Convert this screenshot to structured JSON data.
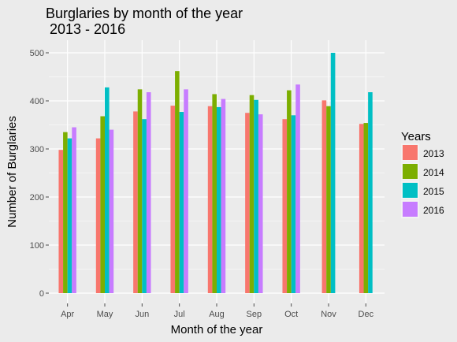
{
  "chart_data": {
    "type": "bar",
    "title_line1": "Burglaries by month of the year",
    "title_line2": " 2013 - 2016",
    "xlabel": "Month of the year",
    "ylabel": "Number of Burglaries",
    "ylim": [
      0,
      515
    ],
    "yticks": [
      0,
      100,
      200,
      300,
      400,
      500
    ],
    "grid": true,
    "legend_position": "right",
    "legend_title": "Years",
    "categories": [
      "Apr",
      "May",
      "Jun",
      "Jul",
      "Aug",
      "Sep",
      "Oct",
      "Nov",
      "Dec"
    ],
    "series": [
      {
        "name": "2013",
        "color": "#f8766d",
        "values": [
          298,
          322,
          378,
          390,
          389,
          375,
          362,
          401,
          352
        ]
      },
      {
        "name": "2014",
        "color": "#7cae00",
        "values": [
          335,
          368,
          424,
          462,
          414,
          412,
          422,
          389,
          354
        ]
      },
      {
        "name": "2015",
        "color": "#00bfc4",
        "values": [
          322,
          428,
          362,
          377,
          387,
          402,
          370,
          500,
          418
        ]
      },
      {
        "name": "2016",
        "color": "#c77cff",
        "values": [
          345,
          340,
          418,
          424,
          404,
          372,
          434,
          null,
          null
        ]
      }
    ]
  }
}
